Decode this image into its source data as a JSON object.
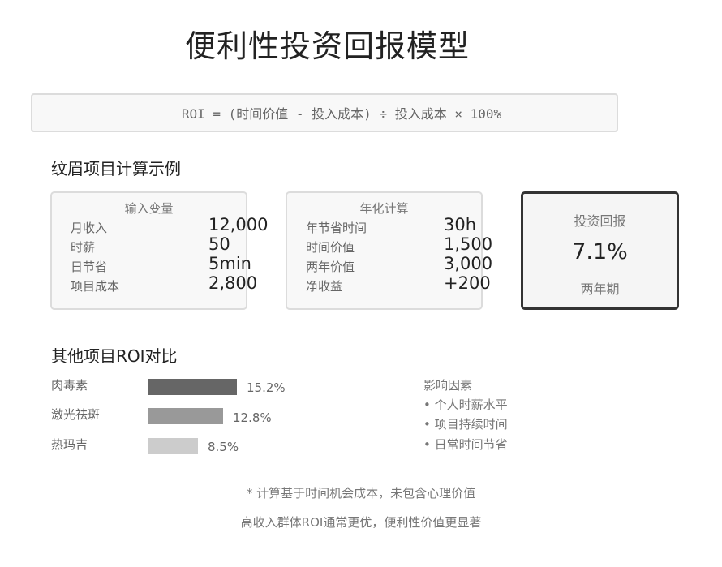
{
  "title": "便利性投资回报模型",
  "formula": "ROI = (时间价值 - 投入成本) ÷ 投入成本 × 100%",
  "example": {
    "heading": "纹眉项目计算示例",
    "inputs": {
      "heading": "输入变量",
      "rows": [
        {
          "label": "月收入",
          "value": "12,000"
        },
        {
          "label": "时薪",
          "value": "50"
        },
        {
          "label": "日节省",
          "value": "5min"
        },
        {
          "label": "项目成本",
          "value": "2,800"
        }
      ]
    },
    "annual": {
      "heading": "年化计算",
      "rows": [
        {
          "label": "年节省时间",
          "value": "30h"
        },
        {
          "label": "时间价值",
          "value": "1,500"
        },
        {
          "label": "两年价值",
          "value": "3,000"
        },
        {
          "label": "净收益",
          "value": "+200"
        }
      ]
    },
    "roi": {
      "label": "投资回报",
      "value": "7.1%",
      "period": "两年期"
    }
  },
  "comparison": {
    "heading": "其他项目ROI对比",
    "items": [
      {
        "name": "肉毒素",
        "roi": 15.2,
        "roi_label": "15.2%",
        "color": "#666666"
      },
      {
        "name": "激光祛斑",
        "roi": 12.8,
        "roi_label": "12.8%",
        "color": "#999999"
      },
      {
        "name": "热玛吉",
        "roi": 8.5,
        "roi_label": "8.5%",
        "color": "#cccccc"
      }
    ]
  },
  "factors": {
    "heading": "影响因素",
    "items": [
      "• 个人时薪水平",
      "• 项目持续时间",
      "• 日常时间节省"
    ]
  },
  "notes": [
    "* 计算基于时间机会成本，未包含心理价值",
    "高收入群体ROI通常更优，便利性价值更显著"
  ]
}
